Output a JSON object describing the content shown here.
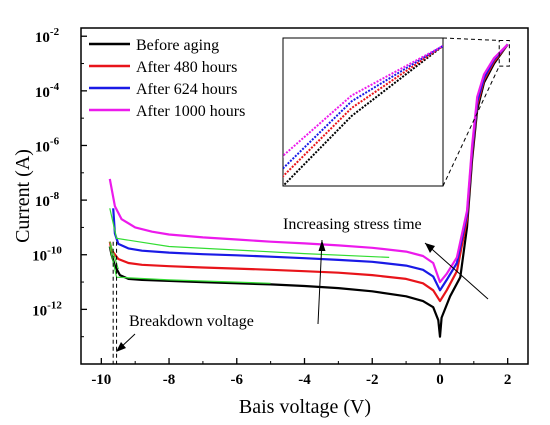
{
  "chart_data": {
    "type": "line",
    "title": "",
    "xlabel": "Bais voltage (V)",
    "ylabel": "Current (A)",
    "xlim": [
      -10.6,
      2.6
    ],
    "ylim": [
      1e-14,
      0.02
    ],
    "yscale": "log",
    "x_ticks": [
      {
        "value": -10,
        "label": "-10"
      },
      {
        "value": -8,
        "label": "-8"
      },
      {
        "value": -6,
        "label": "-6"
      },
      {
        "value": -4,
        "label": "-4"
      },
      {
        "value": -2,
        "label": "-2"
      },
      {
        "value": 0,
        "label": "0"
      },
      {
        "value": 2,
        "label": "2"
      }
    ],
    "y_ticks": [
      {
        "value": 1e-12,
        "base": "10",
        "exp": "-12"
      },
      {
        "value": 1e-10,
        "base": "10",
        "exp": "-10"
      },
      {
        "value": 1e-08,
        "base": "10",
        "exp": "-8"
      },
      {
        "value": 1e-06,
        "base": "10",
        "exp": "-6"
      },
      {
        "value": 0.0001,
        "base": "10",
        "exp": "-4"
      },
      {
        "value": 0.01,
        "base": "10",
        "exp": "-2"
      }
    ],
    "legend_position": "top-left",
    "series": [
      {
        "name": "Before aging",
        "color": "#000000",
        "points": [
          [
            -9.75,
            2e-10
          ],
          [
            -9.7,
            1e-10
          ],
          [
            -9.6,
            4e-11
          ],
          [
            -9.45,
            1.8e-11
          ],
          [
            -9.2,
            1.3e-11
          ],
          [
            -8.8,
            1.2e-11
          ],
          [
            -8,
            1.1e-11
          ],
          [
            -7,
            1e-11
          ],
          [
            -6,
            9e-12
          ],
          [
            -5,
            8.2e-12
          ],
          [
            -4,
            7.2e-12
          ],
          [
            -3,
            6e-12
          ],
          [
            -2,
            4.6e-12
          ],
          [
            -1,
            3e-12
          ],
          [
            -0.5,
            2e-12
          ],
          [
            -0.2,
            1.2e-12
          ],
          [
            -0.05,
            4e-13
          ],
          [
            0,
            1e-13
          ],
          [
            0.05,
            5e-13
          ],
          [
            0.3,
            3e-12
          ],
          [
            0.6,
            1.5e-11
          ],
          [
            0.8,
            1e-09
          ],
          [
            0.95,
            3e-07
          ],
          [
            1.1,
            2e-05
          ],
          [
            1.3,
            0.0002
          ],
          [
            1.6,
            0.001
          ],
          [
            2,
            0.005
          ]
        ]
      },
      {
        "name": "After 480 hours",
        "color": "#e8141a",
        "points": [
          [
            -9.75,
            3e-10
          ],
          [
            -9.7,
            1.5e-10
          ],
          [
            -9.5,
            7e-11
          ],
          [
            -9.2,
            5e-11
          ],
          [
            -8.8,
            4.3e-11
          ],
          [
            -8,
            3.8e-11
          ],
          [
            -7,
            3.4e-11
          ],
          [
            -6,
            3.1e-11
          ],
          [
            -5,
            2.8e-11
          ],
          [
            -4,
            2.5e-11
          ],
          [
            -3,
            2.2e-11
          ],
          [
            -2,
            1.8e-11
          ],
          [
            -1,
            1.3e-11
          ],
          [
            -0.5,
            9e-12
          ],
          [
            -0.2,
            5e-12
          ],
          [
            0,
            2e-12
          ],
          [
            0.2,
            5e-12
          ],
          [
            0.5,
            2.5e-11
          ],
          [
            0.8,
            2e-09
          ],
          [
            0.95,
            5e-07
          ],
          [
            1.1,
            3e-05
          ],
          [
            1.3,
            0.00025
          ],
          [
            1.6,
            0.0012
          ],
          [
            2,
            0.005
          ]
        ]
      },
      {
        "name": "After 624 hours",
        "color": "#1a1ae6",
        "points": [
          [
            -9.65,
            5e-09
          ],
          [
            -9.6,
            6e-10
          ],
          [
            -9.5,
            2.5e-10
          ],
          [
            -9.2,
            1.7e-10
          ],
          [
            -8.8,
            1.4e-10
          ],
          [
            -8,
            1.2e-10
          ],
          [
            -7,
            1.05e-10
          ],
          [
            -6,
            9.5e-11
          ],
          [
            -5,
            8.5e-11
          ],
          [
            -4,
            7.5e-11
          ],
          [
            -3,
            6.5e-11
          ],
          [
            -2,
            5.5e-11
          ],
          [
            -1,
            4e-11
          ],
          [
            -0.5,
            2.8e-11
          ],
          [
            -0.2,
            1.6e-11
          ],
          [
            0,
            5e-12
          ],
          [
            0.2,
            1.2e-11
          ],
          [
            0.5,
            5e-11
          ],
          [
            0.8,
            3e-09
          ],
          [
            0.95,
            7e-07
          ],
          [
            1.1,
            4e-05
          ],
          [
            1.3,
            0.0003
          ],
          [
            1.6,
            0.0014
          ],
          [
            2,
            0.005
          ]
        ]
      },
      {
        "name": "After 1000 hours",
        "color": "#ec1aec",
        "points": [
          [
            -9.75,
            6e-08
          ],
          [
            -9.6,
            6e-09
          ],
          [
            -9.4,
            2e-09
          ],
          [
            -9,
            1e-09
          ],
          [
            -8.5,
            7e-10
          ],
          [
            -8,
            5.5e-10
          ],
          [
            -7,
            4.3e-10
          ],
          [
            -6,
            3.6e-10
          ],
          [
            -5,
            3e-10
          ],
          [
            -4,
            2.6e-10
          ],
          [
            -3,
            2.2e-10
          ],
          [
            -2,
            1.8e-10
          ],
          [
            -1,
            1.3e-10
          ],
          [
            -0.5,
            9e-11
          ],
          [
            -0.2,
            5e-11
          ],
          [
            0,
            1e-11
          ],
          [
            0.2,
            2e-11
          ],
          [
            0.5,
            8e-11
          ],
          [
            0.8,
            4e-09
          ],
          [
            0.95,
            1e-06
          ],
          [
            1.1,
            6e-05
          ],
          [
            1.3,
            0.0004
          ],
          [
            1.6,
            0.0016
          ],
          [
            2,
            0.005
          ]
        ]
      }
    ],
    "guide_lines": [
      {
        "color": "#33dd33",
        "points": [
          [
            -9.75,
            5e-09
          ],
          [
            -9.55,
            4e-10
          ],
          [
            -8,
            2e-10
          ],
          [
            -4,
            1.1e-10
          ],
          [
            -1.5,
            8e-11
          ]
        ]
      },
      {
        "color": "#33dd33",
        "points": [
          [
            -9.75,
            3e-10
          ],
          [
            -9.5,
            3e-11
          ]
        ]
      },
      {
        "color": "#33dd33",
        "points": [
          [
            -9.75,
            2e-10
          ],
          [
            -9.55,
            1.5e-11
          ],
          [
            -8,
            1.2e-11
          ],
          [
            -5,
            9e-12
          ]
        ]
      }
    ],
    "breakdown_markers": [
      -9.65,
      -9.55
    ],
    "annotations": {
      "stress_time": "Increasing stress time",
      "breakdown": "Breakdown voltage"
    },
    "inset": {
      "xlim": [
        1.3,
        2.0
      ],
      "ylim": [
        0.0002,
        0.006
      ],
      "zoom_box": {
        "x": [
          1.75,
          2.05
        ],
        "y": [
          0.0008,
          0.007
        ]
      }
    }
  }
}
